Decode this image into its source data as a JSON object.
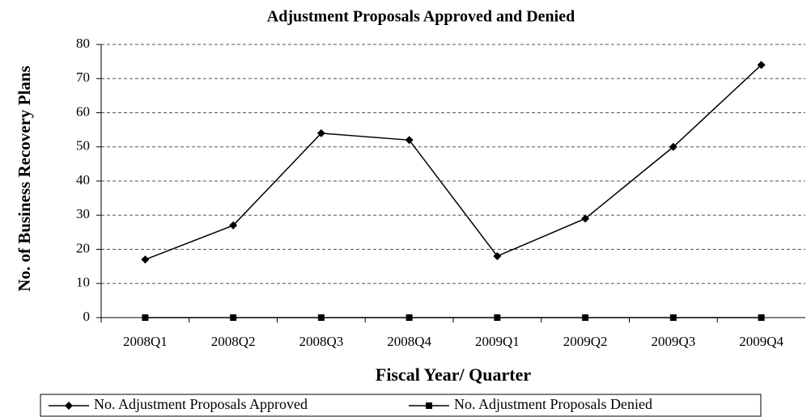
{
  "chart_data": {
    "type": "line",
    "title": "Adjustment Proposals Approved and Denied",
    "xlabel": "Fiscal Year/ Quarter",
    "ylabel": "No. of Business Recovery Plans",
    "categories": [
      "2008Q1",
      "2008Q2",
      "2008Q3",
      "2008Q4",
      "2009Q1",
      "2009Q2",
      "2009Q3",
      "2009Q4"
    ],
    "series": [
      {
        "name": "No. Adjustment Proposals Approved",
        "color": "#000000",
        "marker": "diamond",
        "values": [
          17,
          27,
          54,
          52,
          18,
          29,
          50,
          74
        ]
      },
      {
        "name": "No. Adjustment Proposals Denied",
        "color": "#000000",
        "marker": "square",
        "values": [
          0,
          0,
          0,
          0,
          0,
          0,
          0,
          0
        ]
      }
    ],
    "ylim": [
      0,
      80
    ],
    "yticks": [
      0,
      10,
      20,
      30,
      40,
      50,
      60,
      70,
      80
    ],
    "grid": true,
    "legend": "bottom"
  }
}
